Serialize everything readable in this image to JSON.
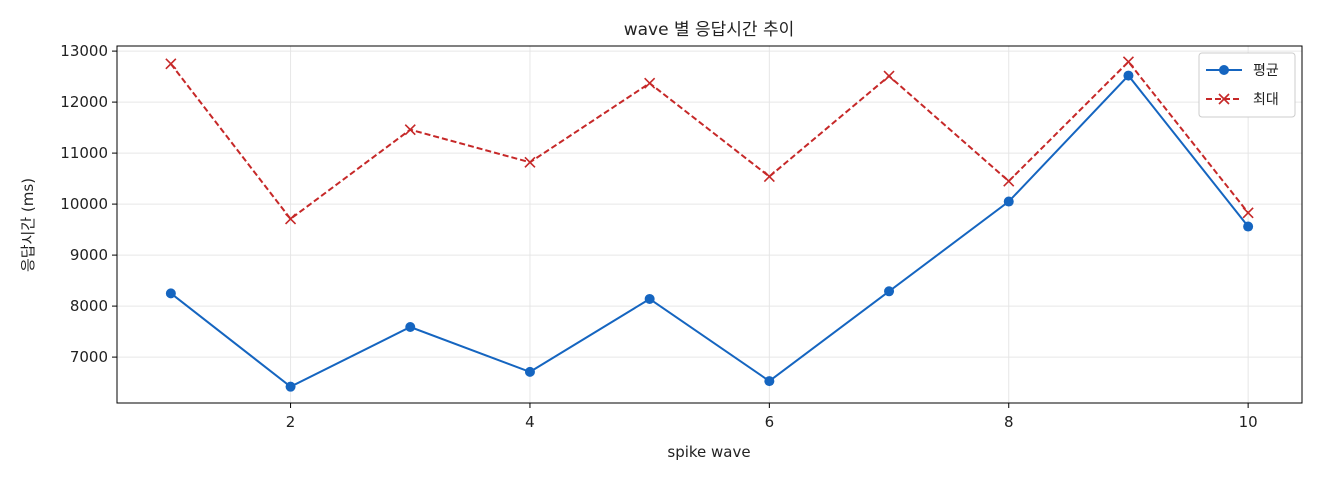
{
  "chart_data": {
    "type": "line",
    "title": "wave 별 응답시간 추이",
    "xlabel": "spike wave",
    "ylabel": "응답시간 (ms)",
    "x": [
      1,
      2,
      3,
      4,
      5,
      6,
      7,
      8,
      9,
      10
    ],
    "xlim": [
      0.55,
      10.45
    ],
    "ylim": [
      6100,
      13100
    ],
    "xticks": [
      2,
      4,
      6,
      8,
      10
    ],
    "yticks": [
      7000,
      8000,
      9000,
      10000,
      11000,
      12000,
      13000
    ],
    "grid": true,
    "legend_position": "top-right",
    "series": [
      {
        "name": "평균",
        "color": "#1565c0",
        "marker": "circle",
        "line_style": "solid",
        "values": [
          8250,
          6420,
          7590,
          6710,
          8140,
          6530,
          8290,
          10050,
          12520,
          9560
        ]
      },
      {
        "name": "최대",
        "color": "#c62828",
        "marker": "x",
        "line_style": "dashed",
        "values": [
          12750,
          9710,
          11460,
          10820,
          12370,
          10540,
          12510,
          10450,
          12790,
          9830
        ]
      }
    ]
  }
}
